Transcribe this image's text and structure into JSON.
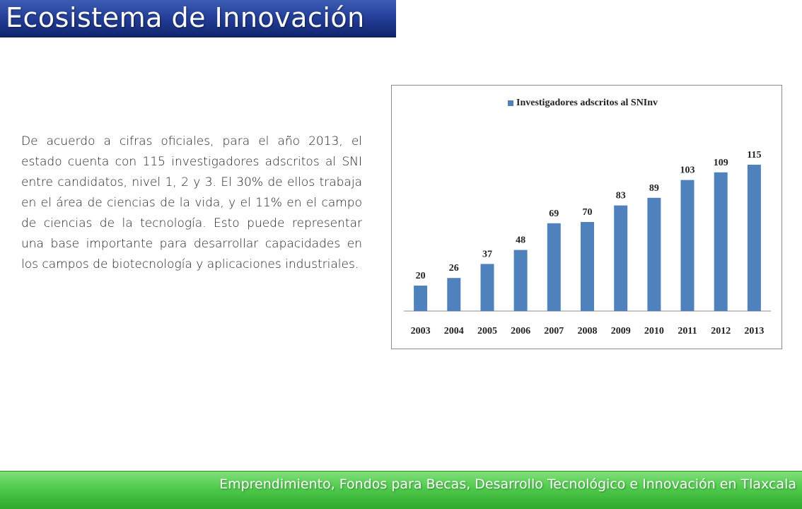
{
  "header": {
    "title": "Ecosistema de Innovación"
  },
  "main": {
    "paragraph": "De acuerdo a cifras oficiales, para el año 2013, el estado cuenta con 115 investigadores adscritos al SNI entre candidatos, nivel 1, 2 y 3. El 30% de ellos trabaja en el área de ciencias de la vida, y el 11% en el campo de ciencias de la tecnología. Esto puede representar una base importante para desarrollar capacidades en los campos de biotecnología y aplicaciones industriales."
  },
  "footer": {
    "text": "Emprendimiento, Fondos para Becas, Desarrollo Tecnológico e Innovación en Tlaxcala"
  },
  "colors": {
    "header_bar": "#25409a",
    "footer_bar": "#4ec94a",
    "bar_fill": "#4f81bd"
  },
  "chart_data": {
    "type": "bar",
    "categories": [
      "2003",
      "2004",
      "2005",
      "2006",
      "2007",
      "2008",
      "2009",
      "2010",
      "2011",
      "2012",
      "2013"
    ],
    "series": [
      {
        "name": "Investigadores adscritos al SNInv",
        "values": [
          20,
          26,
          37,
          48,
          69,
          70,
          83,
          89,
          103,
          109,
          115
        ]
      }
    ],
    "data_labels": true,
    "legend_position": "top",
    "grid": false,
    "ylim": [
      0,
      130
    ]
  }
}
